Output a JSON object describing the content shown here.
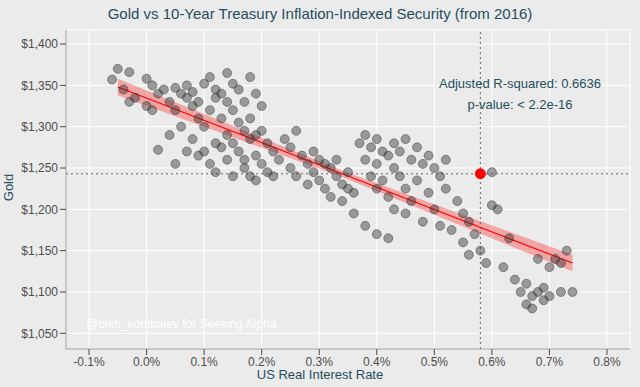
{
  "chart_data": {
    "type": "scatter",
    "title": "Gold vs 10-Year Treasury Inflation-Indexed Security (from 2016)",
    "x_label": "US Real Interest Rate",
    "y_label": "Gold",
    "annotations": [
      "Adjusted R-squared: 0.6636",
      "p-value: < 2.2e-16"
    ],
    "credit": "@oleh_kombalev for Seeking Alpha",
    "color": "#333333",
    "x": [
      -0.06,
      -0.05,
      -0.03,
      -0.04,
      -0.02,
      -0.03,
      0.0,
      0.01,
      0.0,
      0.01,
      0.02,
      0.03,
      0.04,
      0.05,
      0.05,
      0.06,
      0.06,
      0.07,
      0.07,
      0.08,
      0.08,
      0.09,
      0.09,
      0.1,
      0.1,
      0.11,
      0.11,
      0.12,
      0.12,
      0.13,
      0.13,
      0.14,
      0.14,
      0.15,
      0.15,
      0.16,
      0.16,
      0.17,
      0.17,
      0.18,
      0.18,
      0.19,
      0.19,
      0.2,
      0.2,
      0.21,
      0.07,
      0.08,
      0.09,
      0.1,
      0.11,
      0.12,
      0.12,
      0.13,
      0.14,
      0.14,
      0.15,
      0.15,
      0.16,
      0.17,
      0.17,
      0.18,
      0.18,
      0.19,
      0.19,
      0.2,
      0.21,
      0.22,
      0.22,
      0.23,
      0.02,
      0.04,
      0.05,
      0.24,
      0.25,
      0.25,
      0.26,
      0.26,
      0.27,
      0.28,
      0.28,
      0.29,
      0.29,
      0.3,
      0.3,
      0.31,
      0.31,
      0.32,
      0.32,
      0.33,
      0.33,
      0.34,
      0.34,
      0.35,
      0.35,
      0.36,
      0.37,
      0.38,
      0.38,
      0.39,
      0.39,
      0.4,
      0.4,
      0.4,
      0.41,
      0.41,
      0.42,
      0.42,
      0.43,
      0.43,
      0.43,
      0.44,
      0.44,
      0.45,
      0.45,
      0.45,
      0.46,
      0.46,
      0.47,
      0.47,
      0.48,
      0.48,
      0.49,
      0.49,
      0.5,
      0.5,
      0.51,
      0.51,
      0.52,
      0.52,
      0.53,
      0.36,
      0.38,
      0.4,
      0.42,
      0.54,
      0.55,
      0.55,
      0.56,
      0.56,
      0.57,
      0.58,
      0.59,
      0.6,
      0.61,
      0.62,
      0.63,
      0.64,
      0.65,
      0.66,
      0.66,
      0.67,
      0.67,
      0.68,
      0.69,
      0.69,
      0.7,
      0.71,
      0.72,
      0.72,
      0.73,
      0.74,
      0.7,
      0.68,
      0.6
    ],
    "values": [
      1357,
      1370,
      1366,
      1345,
      1335,
      1330,
      1358,
      1350,
      1325,
      1320,
      1340,
      1345,
      1330,
      1347,
      1320,
      1340,
      1300,
      1350,
      1335,
      1342,
      1325,
      1330,
      1310,
      1352,
      1300,
      1360,
      1320,
      1345,
      1335,
      1340,
      1310,
      1365,
      1330,
      1352,
      1320,
      1345,
      1305,
      1330,
      1295,
      1360,
      1310,
      1340,
      1290,
      1325,
      1295,
      1280,
      1270,
      1285,
      1265,
      1270,
      1255,
      1280,
      1245,
      1275,
      1290,
      1260,
      1280,
      1240,
      1270,
      1260,
      1250,
      1285,
      1240,
      1265,
      1235,
      1255,
      1245,
      1240,
      1270,
      1260,
      1272,
      1290,
      1255,
      1285,
      1275,
      1250,
      1295,
      1240,
      1265,
      1255,
      1230,
      1270,
      1245,
      1260,
      1235,
      1255,
      1225,
      1250,
      1215,
      1260,
      1240,
      1230,
      1210,
      1245,
      1225,
      1220,
      1280,
      1290,
      1260,
      1275,
      1240,
      1285,
      1255,
      1225,
      1270,
      1235,
      1265,
      1215,
      1280,
      1250,
      1200,
      1270,
      1240,
      1285,
      1225,
      1195,
      1260,
      1210,
      1275,
      1235,
      1255,
      1185,
      1265,
      1220,
      1250,
      1200,
      1240,
      1180,
      1260,
      1225,
      1175,
      1195,
      1180,
      1170,
      1165,
      1210,
      1195,
      1160,
      1185,
      1145,
      1170,
      1150,
      1135,
      1205,
      1200,
      1130,
      1165,
      1115,
      1100,
      1085,
      1110,
      1095,
      1080,
      1100,
      1090,
      1105,
      1095,
      1140,
      1135,
      1100,
      1150,
      1100,
      1130,
      1140,
      1245
    ],
    "fit": {
      "color": "#ff0000",
      "x": [
        -0.05,
        0.34,
        0.74
      ],
      "values": [
        1348,
        1243,
        1135
      ],
      "lower": [
        1338,
        1239,
        1125
      ],
      "upper": [
        1358,
        1247,
        1145
      ]
    },
    "highlight": {
      "x": 0.58,
      "value": 1243,
      "color": "#ff0000"
    },
    "xlim": [
      -0.14,
      0.84
    ],
    "ylim": [
      1031,
      1417
    ],
    "xticks": [
      {
        "value": -0.1,
        "label": "-0.1%"
      },
      {
        "value": 0.0,
        "label": "0.0%"
      },
      {
        "value": 0.1,
        "label": "0.1%"
      },
      {
        "value": 0.2,
        "label": "0.2%"
      },
      {
        "value": 0.3,
        "label": "0.3%"
      },
      {
        "value": 0.4,
        "label": "0.4%"
      },
      {
        "value": 0.5,
        "label": "0.5%"
      },
      {
        "value": 0.6,
        "label": "0.6%"
      },
      {
        "value": 0.7,
        "label": "0.7%"
      },
      {
        "value": 0.8,
        "label": "0.8%"
      }
    ],
    "yticks": [
      {
        "value": 1050,
        "label": "$1,050"
      },
      {
        "value": 1100,
        "label": "$1,100"
      },
      {
        "value": 1150,
        "label": "$1,150"
      },
      {
        "value": 1200,
        "label": "$1,200"
      },
      {
        "value": 1250,
        "label": "$1,250"
      },
      {
        "value": 1300,
        "label": "$1,300"
      },
      {
        "value": 1350,
        "label": "$1,350"
      },
      {
        "value": 1400,
        "label": "$1,400"
      }
    ],
    "grid": true
  }
}
